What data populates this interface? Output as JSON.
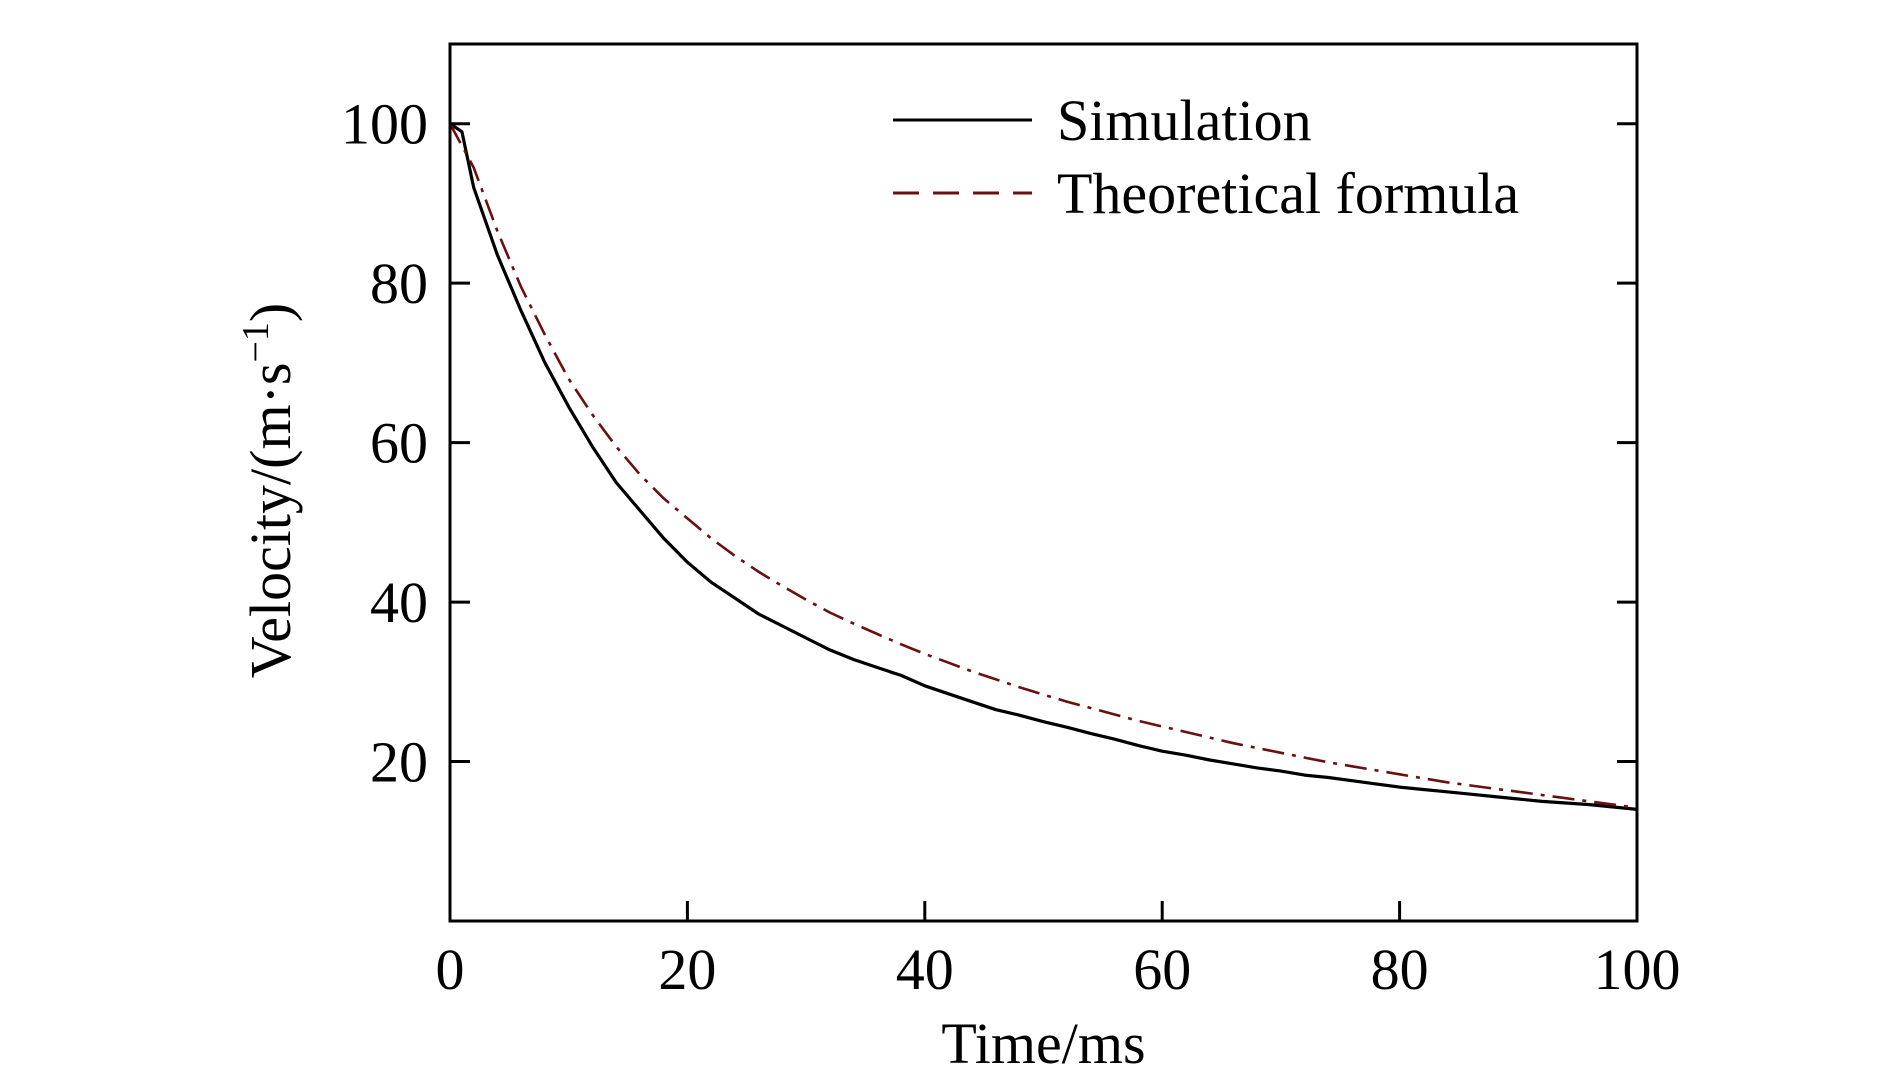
{
  "chart_data": {
    "type": "line",
    "title": "",
    "xlabel": "Time/ms",
    "ylabel_main": "Velocity/(m·s",
    "ylabel_sup": "−1",
    "ylabel_close": ")",
    "xlim": [
      0,
      100
    ],
    "ylim": [
      0,
      110
    ],
    "xticks": [
      0,
      20,
      40,
      60,
      80,
      100
    ],
    "xtick_labels": [
      "0",
      "20",
      "40",
      "60",
      "80",
      "100"
    ],
    "yticks": [
      20,
      40,
      60,
      80,
      100
    ],
    "ytick_labels": [
      "20",
      "40",
      "60",
      "80",
      "100"
    ],
    "grid": false,
    "legend_position": "top-right",
    "series": [
      {
        "name": "Simulation",
        "color": "#000000",
        "style": "solid",
        "x": [
          0,
          1,
          2,
          4,
          6,
          8,
          10,
          12,
          14,
          16,
          18,
          20,
          22,
          24,
          26,
          28,
          30,
          32,
          34,
          36,
          38,
          40,
          42,
          44,
          46,
          48,
          50,
          52,
          54,
          56,
          58,
          60,
          62,
          64,
          66,
          68,
          70,
          72,
          74,
          76,
          78,
          80,
          82,
          84,
          86,
          88,
          90,
          92,
          94,
          96,
          98,
          100
        ],
        "y": [
          100,
          99,
          92,
          83.5,
          76.5,
          70,
          64.5,
          59.5,
          55,
          51.5,
          48,
          45,
          42.5,
          40.5,
          38.5,
          37,
          35.5,
          34,
          32.8,
          31.8,
          30.8,
          29.5,
          28.5,
          27.5,
          26.5,
          25.8,
          25,
          24.3,
          23.5,
          22.8,
          22,
          21.3,
          20.8,
          20.2,
          19.7,
          19.2,
          18.8,
          18.3,
          18,
          17.6,
          17.2,
          16.8,
          16.5,
          16.2,
          15.9,
          15.6,
          15.3,
          15,
          14.8,
          14.6,
          14.3,
          14
        ]
      },
      {
        "name": "Theoretical formula",
        "color": "#6b0f0f",
        "style": "dashed",
        "x": [
          0,
          2,
          4,
          6,
          8,
          10,
          12,
          14,
          16,
          18,
          20,
          22,
          24,
          26,
          28,
          30,
          32,
          34,
          36,
          38,
          40,
          42,
          44,
          46,
          48,
          50,
          52,
          54,
          56,
          58,
          60,
          62,
          64,
          66,
          68,
          70,
          72,
          74,
          76,
          78,
          80,
          82,
          84,
          86,
          88,
          90,
          92,
          94,
          96,
          98,
          100
        ],
        "y": [
          100,
          94.5,
          86.5,
          79.5,
          73.5,
          68,
          63.5,
          59.5,
          56,
          53,
          50.5,
          48,
          45.8,
          43.8,
          42,
          40.3,
          38.7,
          37.3,
          36,
          34.7,
          33.5,
          32.4,
          31.3,
          30.3,
          29.3,
          28.4,
          27.5,
          26.7,
          25.9,
          25.1,
          24.4,
          23.7,
          23,
          22.3,
          21.7,
          21.1,
          20.5,
          19.9,
          19.4,
          18.9,
          18.4,
          17.9,
          17.4,
          17,
          16.6,
          16.2,
          15.8,
          15.4,
          15,
          14.6,
          14.2
        ]
      }
    ]
  }
}
